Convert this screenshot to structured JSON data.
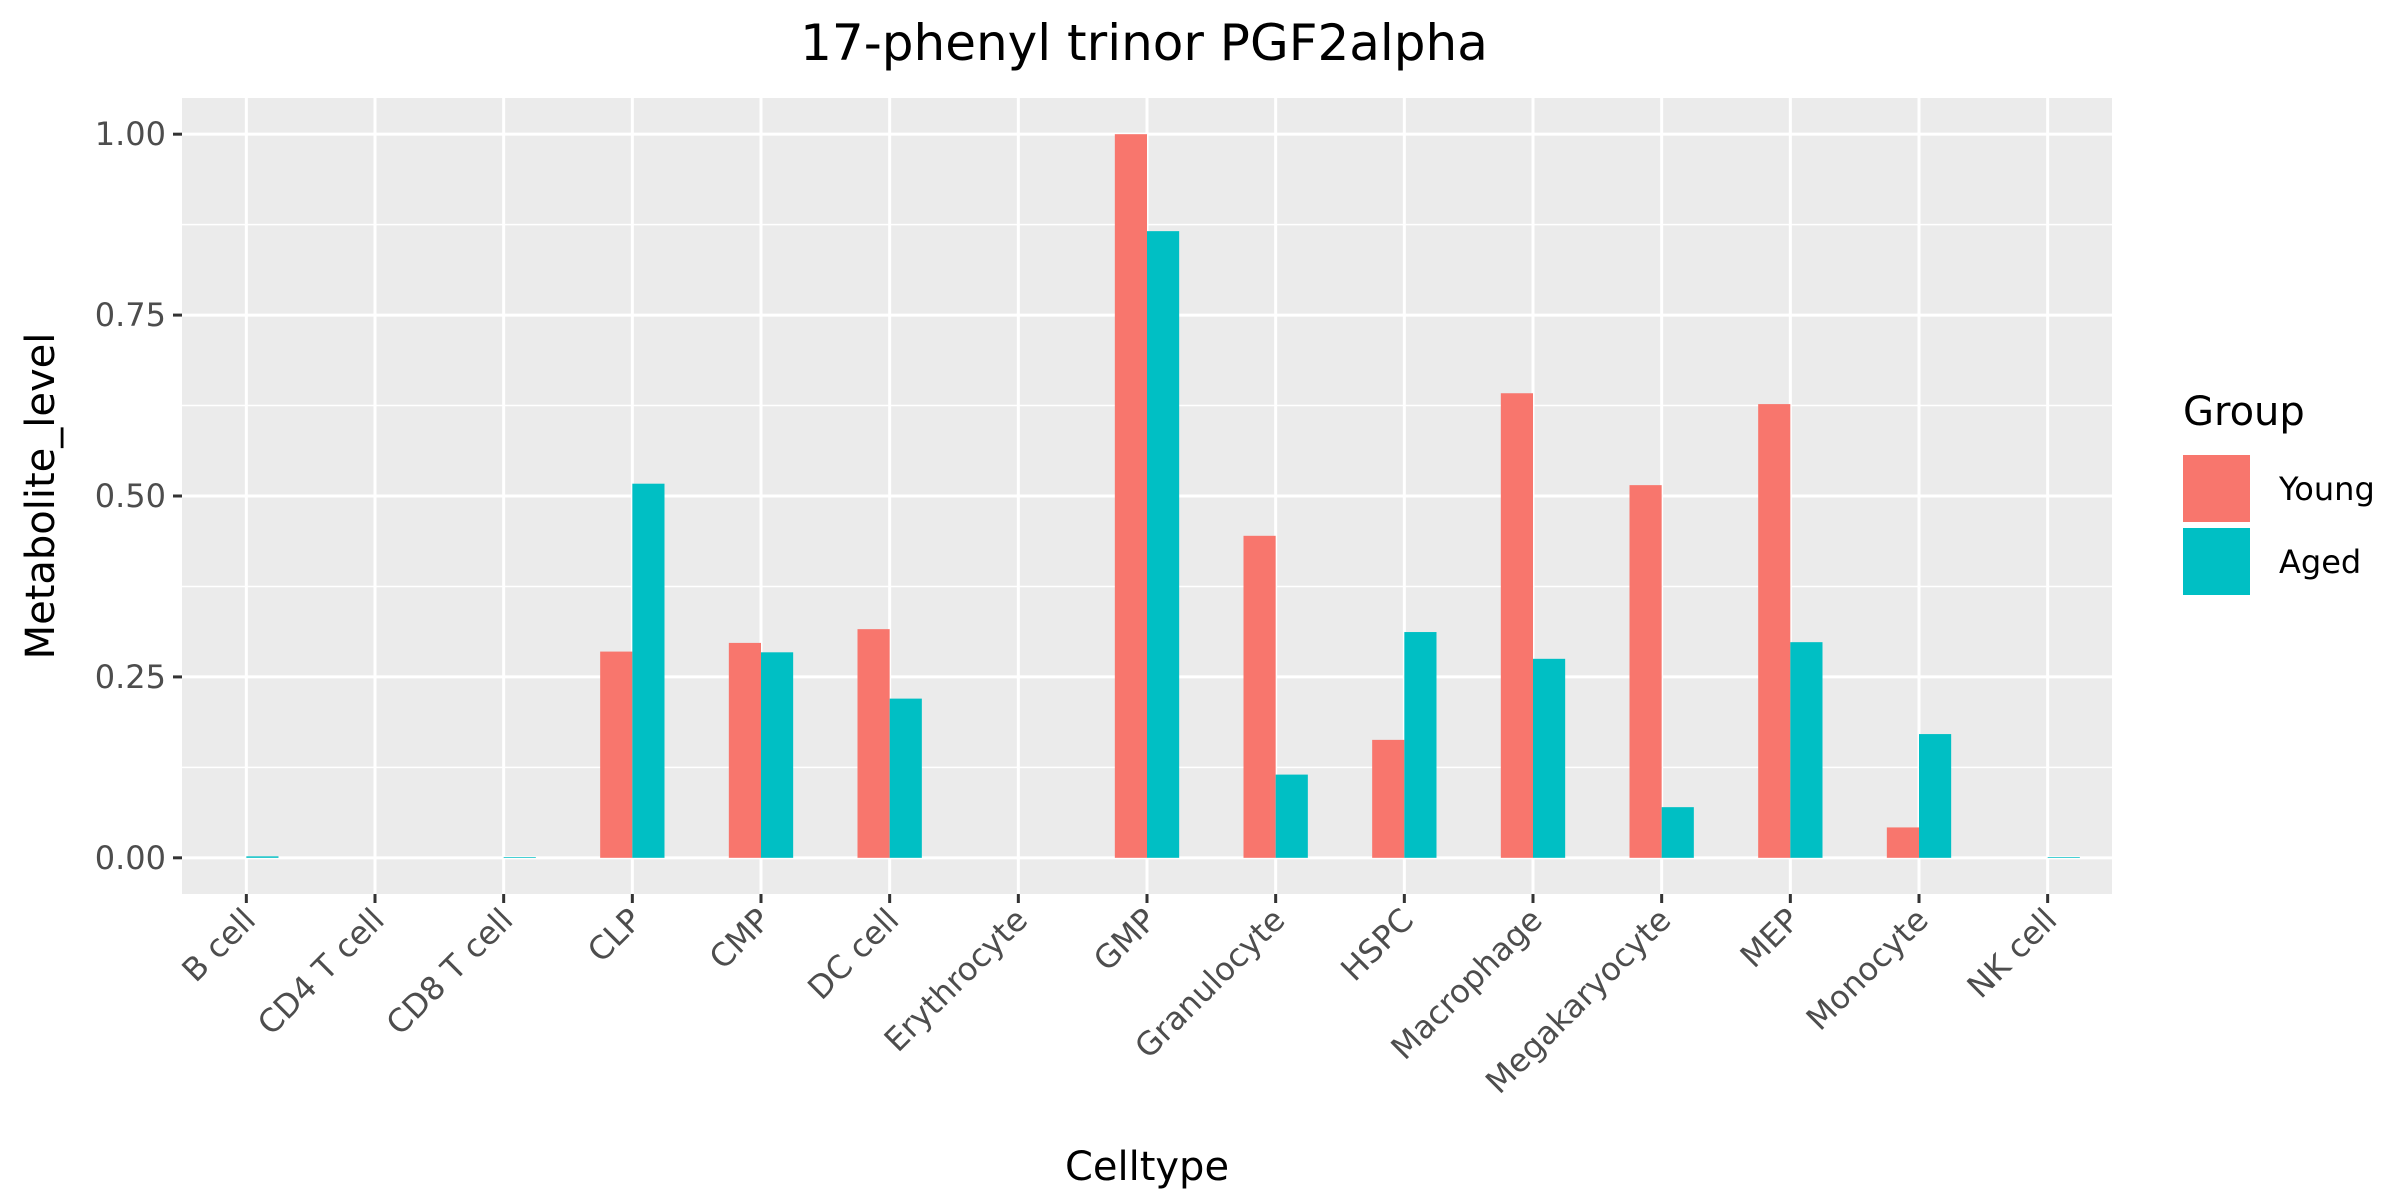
{
  "chart_data": {
    "type": "bar",
    "title": "17-phenyl trinor PGF2alpha",
    "xlabel": "Celltype",
    "ylabel": "Metabolite_level",
    "ylim": [
      -0.05,
      1.05
    ],
    "yticks": [
      0.0,
      0.25,
      0.5,
      0.75,
      1.0
    ],
    "ytick_labels": [
      "0.00",
      "0.25",
      "0.50",
      "0.75",
      "1.00"
    ],
    "grid": true,
    "legend": {
      "title": "Group",
      "position": "right"
    },
    "categories": [
      "B cell",
      "CD4 T cell",
      "CD8 T cell",
      "CLP",
      "CMP",
      "DC cell",
      "Erythrocyte",
      "GMP",
      "Granulocyte",
      "HSPC",
      "Macrophage",
      "Megakaryocyte",
      "MEP",
      "Monocyte",
      "NK cell"
    ],
    "series": [
      {
        "name": "Young",
        "color": "#F8766D",
        "values": [
          0,
          0,
          0,
          0.285,
          0.297,
          0.316,
          0,
          1.0,
          0.445,
          0.163,
          0.642,
          0.515,
          0.627,
          0.042,
          0
        ]
      },
      {
        "name": "Aged",
        "color": "#00BFC4",
        "values": [
          0.002,
          0,
          0.001,
          0.517,
          0.284,
          0.22,
          0,
          0.866,
          0.115,
          0.312,
          0.275,
          0.07,
          0.298,
          0.171,
          0.001
        ]
      }
    ]
  }
}
